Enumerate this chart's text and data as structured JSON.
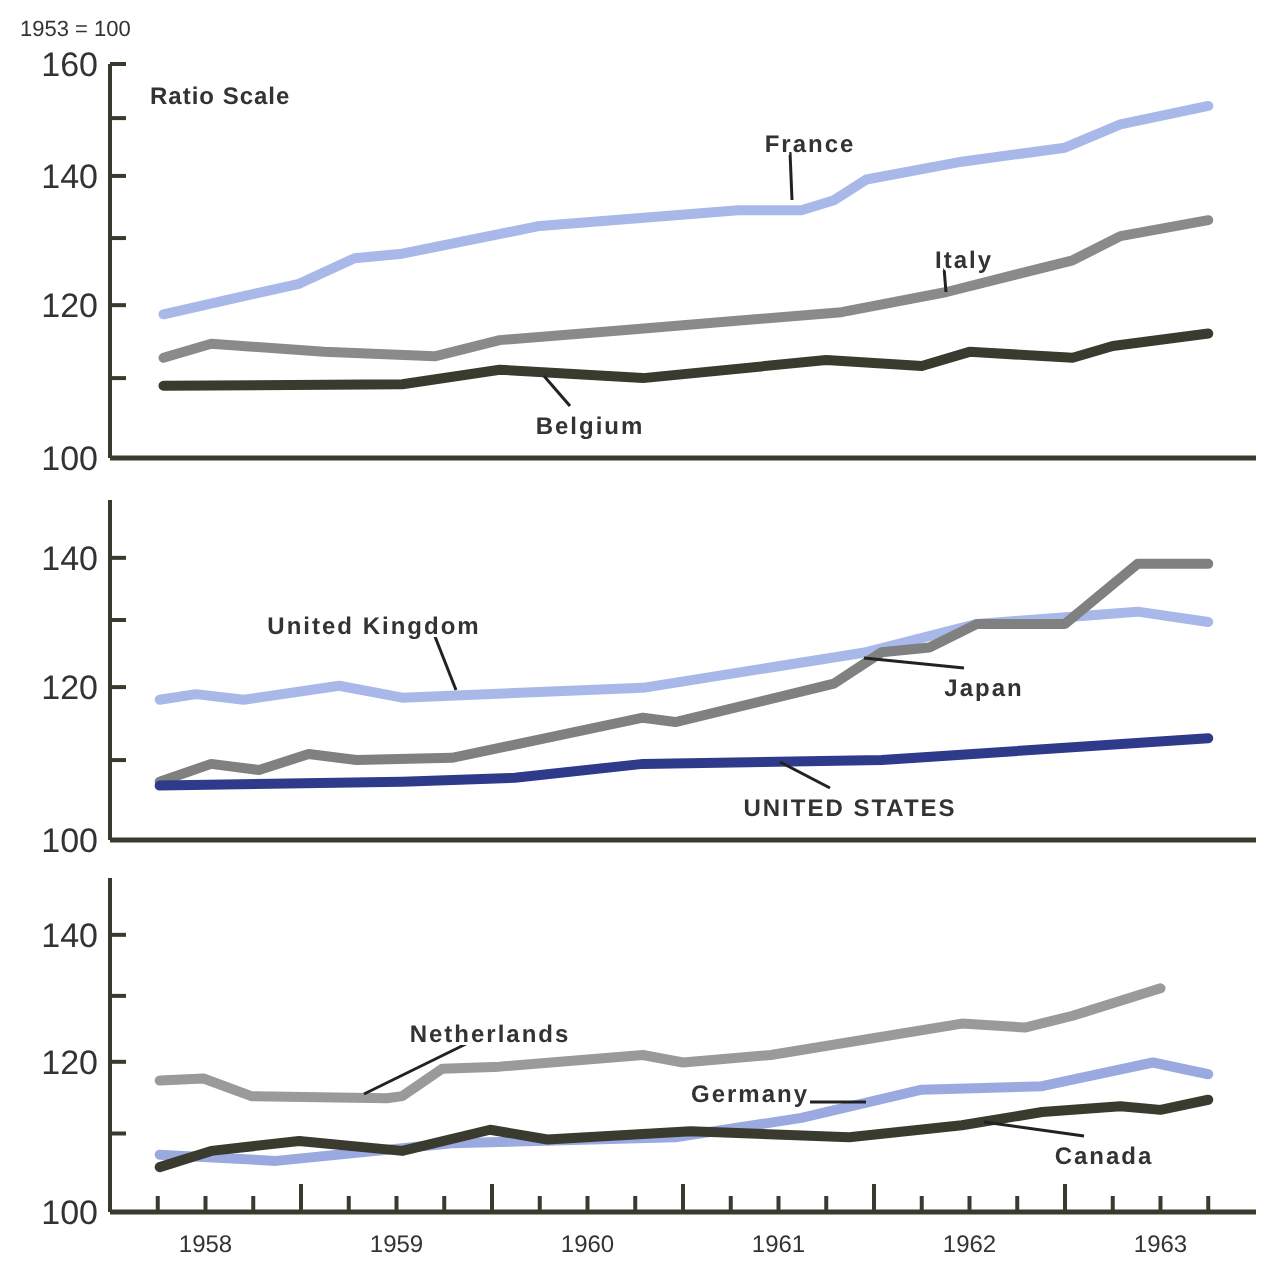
{
  "chart_data": [
    {
      "type": "line",
      "ylabel": "1953 = 100",
      "annotations": [
        "Ratio Scale"
      ],
      "log": "y",
      "grid": false,
      "line_style": "solid",
      "marker": "none",
      "tick_labels": "y",
      "xlim": [
        1958,
        1964
      ],
      "ylim": [
        100,
        160
      ],
      "yticks": [
        100,
        {
          "value": 110,
          "label": null
        },
        120,
        {
          "value": 130,
          "label": null
        },
        140,
        {
          "value": 150,
          "label": null
        },
        160
      ],
      "series": [
        {
          "name": "France",
          "color": "#a8b8e8",
          "x": [
            1958.28,
            1958.99,
            1959.28,
            1959.53,
            1960.25,
            1961.29,
            1961.62,
            1961.79,
            1961.96,
            1962.46,
            1963.0,
            1963.29,
            1963.75
          ],
          "values": [
            118.7,
            123.1,
            126.9,
            127.6,
            131.9,
            134.4,
            134.4,
            136.0,
            139.4,
            142.4,
            144.8,
            148.9,
            152.2
          ]
        },
        {
          "name": "Italy",
          "color": "#8a8a8a",
          "x": [
            1958.28,
            1958.53,
            1959.12,
            1959.7,
            1960.04,
            1960.7,
            1961.83,
            1962.38,
            1963.04,
            1963.29,
            1963.75
          ],
          "values": [
            112.7,
            114.6,
            113.5,
            112.9,
            115.1,
            116.5,
            119.0,
            121.9,
            126.6,
            130.3,
            132.8
          ]
        },
        {
          "name": "Belgium",
          "color": "#3a3a2e",
          "x": [
            1958.28,
            1959.53,
            1960.04,
            1960.79,
            1961.75,
            1962.25,
            1962.5,
            1963.04,
            1963.25,
            1963.75
          ],
          "values": [
            109.0,
            109.2,
            111.1,
            110.0,
            112.4,
            111.6,
            113.5,
            112.7,
            114.3,
            116.0
          ]
        }
      ]
    },
    {
      "type": "line",
      "log": "y",
      "grid": false,
      "line_style": "solid",
      "marker": "none",
      "tick_labels": "y",
      "xlim": [
        1958,
        1964
      ],
      "ylim": [
        100,
        150
      ],
      "yticks": [
        100,
        {
          "value": 110,
          "label": null
        },
        120,
        {
          "value": 130,
          "label": null
        },
        140
      ],
      "series": [
        {
          "name": "United Kingdom",
          "color": "#a8b8e8",
          "x": [
            1958.26,
            1958.45,
            1958.7,
            1959.2,
            1959.53,
            1960.79,
            1961.96,
            1962.54,
            1963.38,
            1963.75
          ],
          "values": [
            118.2,
            119.0,
            118.2,
            120.2,
            118.5,
            119.9,
            125.1,
            129.4,
            131.3,
            129.7
          ]
        },
        {
          "name": "Japan",
          "color": "#808080",
          "x": [
            1958.26,
            1958.53,
            1958.78,
            1959.04,
            1959.29,
            1959.79,
            1960.79,
            1960.96,
            1961.79,
            1962.04,
            1962.29,
            1962.54,
            1963.0,
            1963.38,
            1963.75
          ],
          "values": [
            107.2,
            109.5,
            108.7,
            110.8,
            110.0,
            110.3,
            115.7,
            115.1,
            120.5,
            125.1,
            125.8,
            129.4,
            129.4,
            139.0,
            139.0
          ]
        },
        {
          "name": "UNITED STATES",
          "color": "#2e3a8a",
          "x": [
            1958.26,
            1959.53,
            1960.12,
            1960.79,
            1962.04,
            1963.75
          ],
          "values": [
            106.7,
            107.2,
            107.7,
            109.5,
            110.0,
            112.9
          ]
        }
      ]
    },
    {
      "type": "line",
      "log": "y",
      "grid": false,
      "line_style": "solid",
      "marker": "none",
      "xlim": [
        1958,
        1964
      ],
      "ylim": [
        100,
        150
      ],
      "yticks": [
        100,
        {
          "value": 110,
          "label": null
        },
        120,
        {
          "value": 130,
          "label": null
        },
        140
      ],
      "xticks": [
        {
          "value": 1958.25,
          "label": null
        },
        {
          "value": 1958.5,
          "label": "1958"
        },
        {
          "value": 1958.75,
          "label": null
        },
        {
          "value": 1959,
          "label": null
        },
        {
          "value": 1959.25,
          "label": null
        },
        {
          "value": 1959.5,
          "label": "1959"
        },
        {
          "value": 1959.75,
          "label": null
        },
        {
          "value": 1960,
          "label": null
        },
        {
          "value": 1960.25,
          "label": null
        },
        {
          "value": 1960.5,
          "label": "1960"
        },
        {
          "value": 1960.75,
          "label": null
        },
        {
          "value": 1961,
          "label": null
        },
        {
          "value": 1961.25,
          "label": null
        },
        {
          "value": 1961.5,
          "label": "1961"
        },
        {
          "value": 1961.75,
          "label": null
        },
        {
          "value": 1962,
          "label": null
        },
        {
          "value": 1962.25,
          "label": null
        },
        {
          "value": 1962.5,
          "label": "1962"
        },
        {
          "value": 1962.75,
          "label": null
        },
        {
          "value": 1963,
          "label": null
        },
        {
          "value": 1963.25,
          "label": null
        },
        {
          "value": 1963.5,
          "label": "1963"
        },
        {
          "value": 1963.75,
          "label": null
        }
      ],
      "series": [
        {
          "name": "Netherlands",
          "color": "#9a9a9a",
          "x": [
            1958.26,
            1958.49,
            1958.74,
            1959.45,
            1959.53,
            1959.74,
            1960.04,
            1960.79,
            1961.0,
            1961.46,
            1962.46,
            1962.79,
            1963.04,
            1963.5
          ],
          "values": [
            117.3,
            117.6,
            115.1,
            114.8,
            115.1,
            119.0,
            119.3,
            121.0,
            119.9,
            121.0,
            125.7,
            125.1,
            126.9,
            131.2
          ]
        },
        {
          "name": "Germany",
          "color": "#9aaae0",
          "x": [
            1958.26,
            1958.87,
            1959.79,
            1960.96,
            1961.62,
            1962.25,
            1962.88,
            1963.46,
            1963.75
          ],
          "values": [
            107.2,
            106.4,
            108.7,
            109.5,
            112.1,
            116.0,
            116.5,
            119.9,
            118.2
          ]
        },
        {
          "name": "Canada",
          "color": "#3a3a2e",
          "x": [
            1958.26,
            1958.53,
            1958.99,
            1959.53,
            1959.99,
            1960.29,
            1961.04,
            1961.87,
            1962.46,
            1962.88,
            1963.29,
            1963.5,
            1963.75
          ],
          "values": [
            105.6,
            107.7,
            109.0,
            107.7,
            110.5,
            109.2,
            110.3,
            109.5,
            111.1,
            112.9,
            113.7,
            113.2,
            114.6
          ]
        }
      ]
    }
  ]
}
